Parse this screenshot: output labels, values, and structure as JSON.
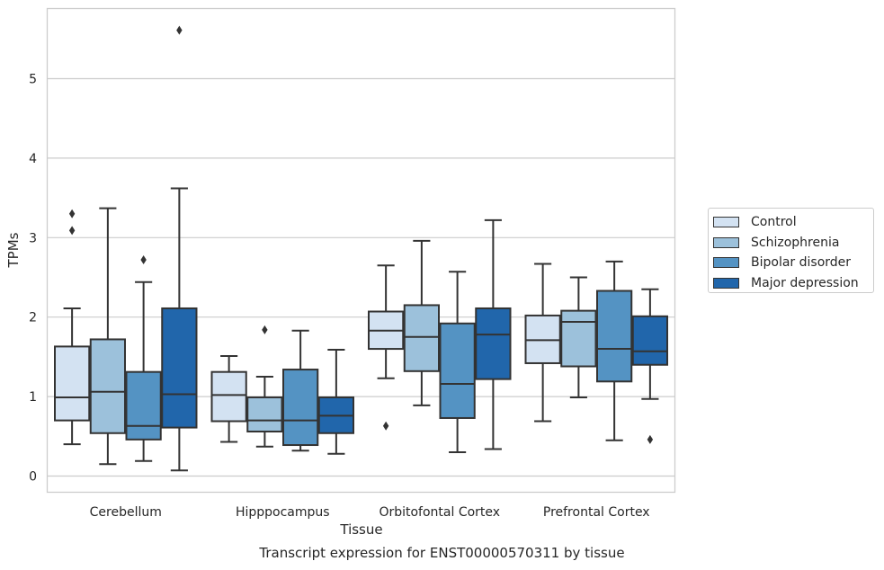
{
  "chart_data": {
    "type": "box",
    "ylabel": "TPMs",
    "xlabel": "Tissue",
    "ylim": [
      -0.2,
      5.9
    ],
    "yticks": [
      0,
      1,
      2,
      3,
      4,
      5
    ],
    "grid": "horizontal",
    "categories": [
      "Cerebellum",
      "Hipppocampus",
      "Orbitofontal Cortex",
      "Prefrontal Cortex"
    ],
    "legend_placement": "right, outside",
    "series": [
      {
        "name": "Control",
        "color": "#d3e2f2",
        "boxes": [
          {
            "whisker_low": 0.4,
            "q1": 0.7,
            "median": 0.99,
            "q3": 1.63,
            "whisker_high": 2.11,
            "outliers": [
              3.3,
              3.09
            ]
          },
          {
            "whisker_low": 0.43,
            "q1": 0.69,
            "median": 1.02,
            "q3": 1.31,
            "whisker_high": 1.51,
            "outliers": []
          },
          {
            "whisker_low": 1.23,
            "q1": 1.6,
            "median": 1.83,
            "q3": 2.07,
            "whisker_high": 2.65,
            "outliers": [
              0.63
            ]
          },
          {
            "whisker_low": 0.69,
            "q1": 1.42,
            "median": 1.71,
            "q3": 2.02,
            "whisker_high": 2.67,
            "outliers": []
          }
        ]
      },
      {
        "name": "Schizophrenia",
        "color": "#9cc1db",
        "boxes": [
          {
            "whisker_low": 0.15,
            "q1": 0.54,
            "median": 1.06,
            "q3": 1.72,
            "whisker_high": 3.37,
            "outliers": []
          },
          {
            "whisker_low": 0.37,
            "q1": 0.56,
            "median": 0.7,
            "q3": 0.99,
            "whisker_high": 1.25,
            "outliers": [
              1.84
            ]
          },
          {
            "whisker_low": 0.89,
            "q1": 1.32,
            "median": 1.75,
            "q3": 2.15,
            "whisker_high": 2.96,
            "outliers": []
          },
          {
            "whisker_low": 0.99,
            "q1": 1.38,
            "median": 1.94,
            "q3": 2.08,
            "whisker_high": 2.5,
            "outliers": []
          }
        ]
      },
      {
        "name": "Bipolar disorder",
        "color": "#5493c3",
        "boxes": [
          {
            "whisker_low": 0.19,
            "q1": 0.46,
            "median": 0.63,
            "q3": 1.31,
            "whisker_high": 2.44,
            "outliers": [
              2.72
            ]
          },
          {
            "whisker_low": 0.32,
            "q1": 0.39,
            "median": 0.7,
            "q3": 1.34,
            "whisker_high": 1.83,
            "outliers": []
          },
          {
            "whisker_low": 0.3,
            "q1": 0.73,
            "median": 1.16,
            "q3": 1.92,
            "whisker_high": 2.57,
            "outliers": []
          },
          {
            "whisker_low": 0.45,
            "q1": 1.19,
            "median": 1.6,
            "q3": 2.33,
            "whisker_high": 2.7,
            "outliers": []
          }
        ]
      },
      {
        "name": "Major depression",
        "color": "#2166ab",
        "boxes": [
          {
            "whisker_low": 0.07,
            "q1": 0.61,
            "median": 1.03,
            "q3": 2.11,
            "whisker_high": 3.62,
            "outliers": [
              5.61
            ]
          },
          {
            "whisker_low": 0.28,
            "q1": 0.54,
            "median": 0.76,
            "q3": 0.99,
            "whisker_high": 1.59,
            "outliers": []
          },
          {
            "whisker_low": 0.34,
            "q1": 1.22,
            "median": 1.78,
            "q3": 2.11,
            "whisker_high": 3.22,
            "outliers": []
          },
          {
            "whisker_low": 0.97,
            "q1": 1.4,
            "median": 1.57,
            "q3": 2.01,
            "whisker_high": 2.35,
            "outliers": [
              0.46
            ]
          }
        ]
      }
    ],
    "caption": "Transcript expression for ENST00000570311 by tissue"
  }
}
